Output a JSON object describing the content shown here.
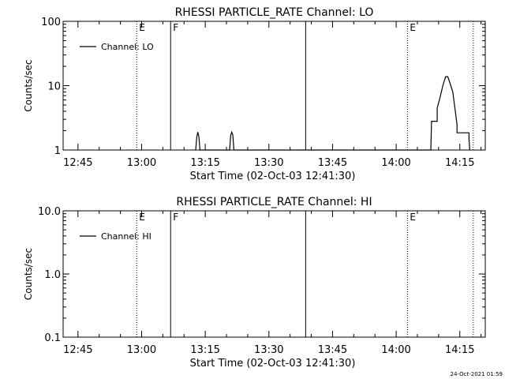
{
  "footer_timestamp": "24-Oct-2021 01:59",
  "chart_data": [
    {
      "type": "line",
      "title": "RHESSI PARTICLE_RATE Channel: LO",
      "xlabel": "Start Time (02-Oct-03 12:41:30)",
      "ylabel": "Counts/sec",
      "y_scale": "log",
      "xlim": [
        "12:41:30",
        "14:21:00"
      ],
      "ylim": [
        1,
        100
      ],
      "x_ticks": [
        "12:45",
        "13:00",
        "13:15",
        "13:30",
        "13:45",
        "14:00",
        "14:15"
      ],
      "y_ticks": [
        "1",
        "10",
        "100"
      ],
      "grid": false,
      "legend_position": "top-left",
      "series": [
        {
          "name": "Channel: LO",
          "color": "#000000",
          "points": [
            [
              "13:12:45",
              1
            ],
            [
              "13:13:00",
              1.6
            ],
            [
              "13:13:15",
              1.9
            ],
            [
              "13:13:30",
              1.6
            ],
            [
              "13:13:45",
              1
            ],
            [
              "13:20:45",
              1
            ],
            [
              "13:21:00",
              1.7
            ],
            [
              "13:21:15",
              1.9
            ],
            [
              "13:21:30",
              1.7
            ],
            [
              "13:21:45",
              1
            ],
            [
              "14:08:10",
              1
            ],
            [
              "14:08:20",
              2.8
            ],
            [
              "14:09:40",
              2.8
            ],
            [
              "14:09:40",
              4.5
            ],
            [
              "14:10:20",
              6.5
            ],
            [
              "14:11:00",
              10
            ],
            [
              "14:11:40",
              13.8
            ],
            [
              "14:12:10",
              13.8
            ],
            [
              "14:12:40",
              11
            ],
            [
              "14:13:20",
              8
            ],
            [
              "14:13:50",
              4.5
            ],
            [
              "14:14:20",
              2.5
            ],
            [
              "14:14:20",
              1.85
            ],
            [
              "14:17:10",
              1.85
            ],
            [
              "14:17:10",
              1.5
            ],
            [
              "14:17:20",
              1
            ]
          ]
        }
      ],
      "markers": [
        {
          "time": "12:58:50",
          "style": "dotted",
          "label": "E"
        },
        {
          "time": "13:06:50",
          "style": "solid",
          "label": "F"
        },
        {
          "time": "13:38:40",
          "style": "solid",
          "label": ""
        },
        {
          "time": "14:02:40",
          "style": "dotted",
          "label": "E"
        },
        {
          "time": "14:18:10",
          "style": "dotted",
          "label": ""
        }
      ]
    },
    {
      "type": "line",
      "title": "RHESSI PARTICLE_RATE Channel: HI",
      "xlabel": "Start Time (02-Oct-03 12:41:30)",
      "ylabel": "Counts/sec",
      "y_scale": "log",
      "xlim": [
        "12:41:30",
        "14:21:00"
      ],
      "ylim": [
        0.1,
        10
      ],
      "x_ticks": [
        "12:45",
        "13:00",
        "13:15",
        "13:30",
        "13:45",
        "14:00",
        "14:15"
      ],
      "y_ticks": [
        "0.1",
        "1.0",
        "10.0"
      ],
      "grid": false,
      "legend_position": "top-left",
      "series": [
        {
          "name": "Channel: HI",
          "color": "#000000",
          "points": []
        }
      ],
      "markers": [
        {
          "time": "12:58:50",
          "style": "dotted",
          "label": "E"
        },
        {
          "time": "13:06:50",
          "style": "solid",
          "label": "F"
        },
        {
          "time": "13:38:40",
          "style": "solid",
          "label": ""
        },
        {
          "time": "14:02:40",
          "style": "dotted",
          "label": "E"
        },
        {
          "time": "14:18:10",
          "style": "dotted",
          "label": ""
        }
      ]
    }
  ]
}
